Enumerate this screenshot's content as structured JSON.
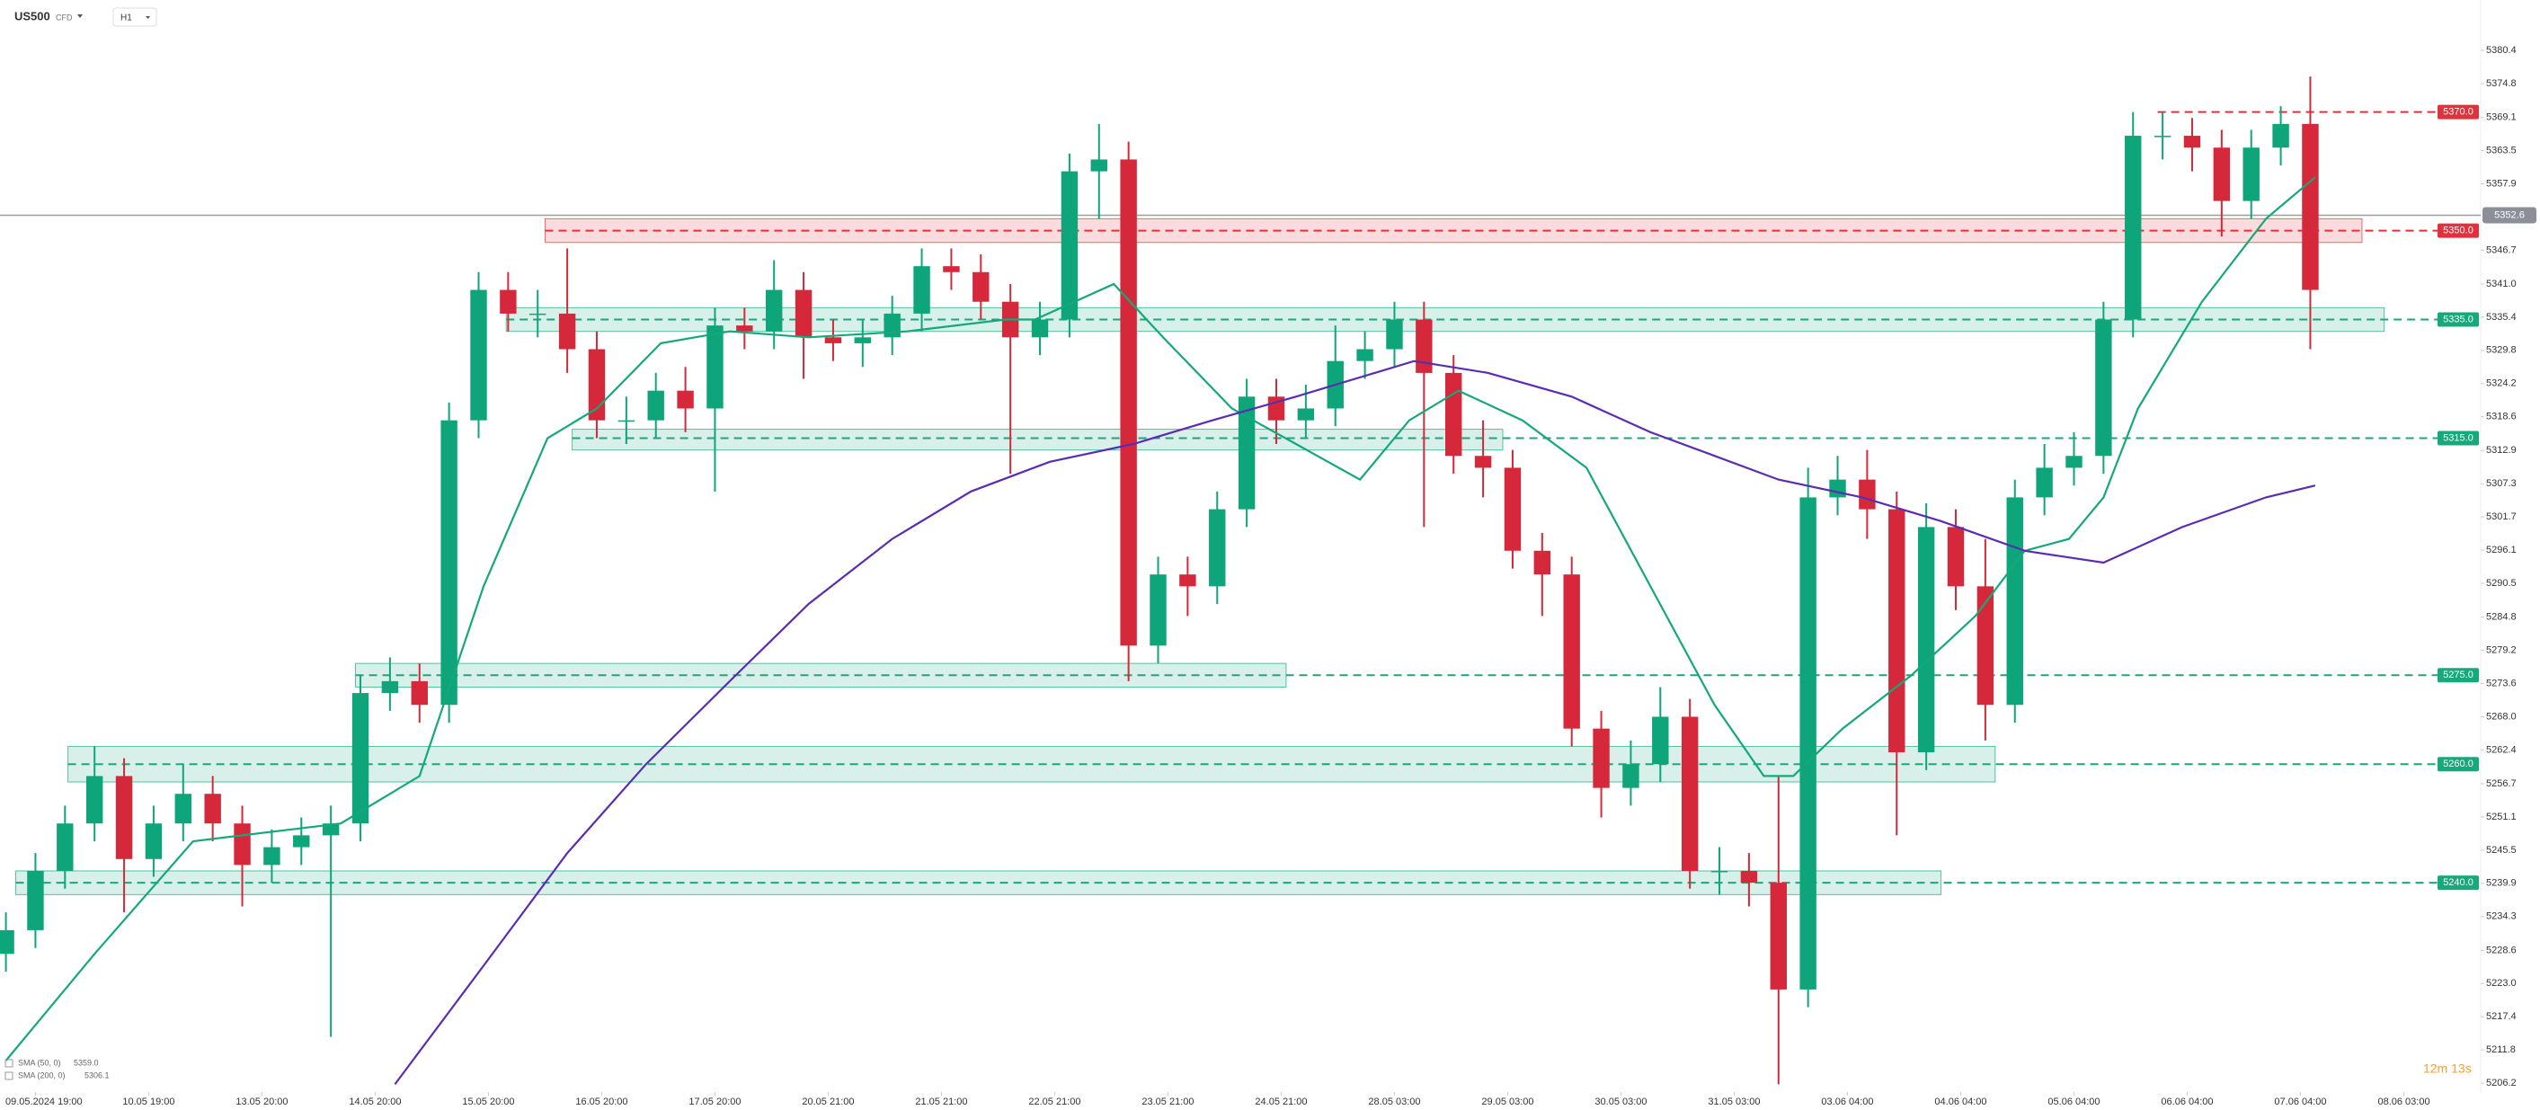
{
  "header": {
    "symbol": "US500",
    "market": "CFD",
    "timeframe": "H1"
  },
  "chart_data": {
    "type": "candlestick",
    "xlim": [
      -7.2,
      496.6
    ],
    "ylim": [
      5204.7,
      5388.9
    ],
    "yticks": [
      5380.4,
      5374.8,
      5369.1,
      5363.5,
      5357.9,
      5346.7,
      {
        "value": 5341.0,
        "label": "5341.0"
      },
      5335.4,
      5329.8,
      5324.2,
      5318.6,
      5312.9,
      5307.3,
      5301.7,
      5296.1,
      5290.5,
      5284.8,
      5279.2,
      5273.6,
      {
        "value": 5268.0,
        "label": "5268.0"
      },
      5262.4,
      5256.7,
      5251.1,
      5245.5,
      5239.9,
      5234.3,
      5228.6,
      {
        "value": 5223.0,
        "label": "5223.0"
      },
      5217.4,
      5211.8,
      5206.2
    ],
    "xticks": [
      {
        "value": 0,
        "label": "09.05.2024 19:00"
      },
      {
        "value": 23,
        "label": "10.05 19:00"
      },
      {
        "value": 46,
        "label": "13.05 20:00"
      },
      {
        "value": 69,
        "label": "14.05 20:00"
      },
      {
        "value": 92,
        "label": "15.05 20:00"
      },
      {
        "value": 115,
        "label": "16.05 20:00"
      },
      {
        "value": 138,
        "label": "17.05 20:00"
      },
      {
        "value": 161,
        "label": "20.05 21:00"
      },
      {
        "value": 184,
        "label": "21.05 21:00"
      },
      {
        "value": 207,
        "label": "22.05 21:00"
      },
      {
        "value": 230,
        "label": "23.05 21:00"
      },
      {
        "value": 253,
        "label": "24.05 21:00"
      },
      {
        "value": 276,
        "label": "28.05 03:00"
      },
      {
        "value": 299,
        "label": "29.05 03:00"
      },
      {
        "value": 322,
        "label": "30.05 03:00"
      },
      {
        "value": 345,
        "label": "31.05 03:00"
      },
      {
        "value": 368,
        "label": "03.06 04:00"
      },
      {
        "value": 391,
        "label": "04.06 04:00"
      },
      {
        "value": 414,
        "label": "05.06 04:00"
      },
      {
        "value": 437,
        "label": "06.06 04:00"
      },
      {
        "value": 460,
        "label": "07.06 04:00"
      },
      {
        "value": 481,
        "label": "08.06 03:00"
      }
    ],
    "up_color": "#0ea57a",
    "down_color": "#d6283b",
    "candles": {
      "x": [
        -6,
        0,
        6,
        12,
        18,
        24,
        30,
        36,
        42,
        48,
        54,
        60,
        66,
        72,
        78,
        84,
        90,
        96,
        102,
        108,
        114,
        120,
        126,
        132,
        138,
        144,
        150,
        156,
        162,
        168,
        174,
        180,
        186,
        192,
        198,
        204,
        210,
        216,
        222,
        228,
        234,
        240,
        246,
        252,
        258,
        264,
        270,
        276,
        282,
        288,
        294,
        300,
        306,
        312,
        318,
        324,
        330,
        336,
        342,
        348,
        354,
        360,
        366,
        372,
        378,
        384,
        390,
        396,
        402,
        408,
        414,
        420,
        426,
        432,
        438,
        444,
        450,
        456,
        462
      ],
      "open": [
        5228,
        5232,
        5242,
        5250,
        5258,
        5244,
        5250,
        5255,
        5250,
        5243,
        5246,
        5248,
        5250,
        5272,
        5274,
        5270,
        5318,
        5340,
        5336,
        5336,
        5330,
        5318,
        5318,
        5323,
        5320,
        5334,
        5333,
        5340,
        5332,
        5331,
        5332,
        5336,
        5344,
        5343,
        5338,
        5332,
        5335,
        5360,
        5362,
        5280,
        5292,
        5290,
        5303,
        5322,
        5318,
        5320,
        5328,
        5330,
        5335,
        5326,
        5312,
        5310,
        5296,
        5292,
        5266,
        5256,
        5260,
        5268,
        5242,
        5242,
        5240,
        5222,
        5305,
        5308,
        5303,
        5262,
        5300,
        5290,
        5270,
        5305,
        5310,
        5312,
        5335,
        5366,
        5366,
        5364,
        5355,
        5364,
        5368
      ],
      "high": [
        5235,
        5245,
        5253,
        5263,
        5261,
        5253,
        5260,
        5258,
        5253,
        5249,
        5251,
        5253,
        5275,
        5278,
        5277,
        5321,
        5343,
        5343,
        5340,
        5347,
        5333,
        5322,
        5326,
        5327,
        5337,
        5337,
        5345,
        5343,
        5335,
        5335,
        5339,
        5347,
        5347,
        5346,
        5341,
        5338,
        5363,
        5368,
        5365,
        5295,
        5295,
        5306,
        5325,
        5325,
        5324,
        5334,
        5333,
        5338,
        5338,
        5329,
        5318,
        5313,
        5299,
        5295,
        5269,
        5264,
        5273,
        5271,
        5246,
        5245,
        5258,
        5310,
        5312,
        5313,
        5306,
        5304,
        5303,
        5298,
        5308,
        5314,
        5316,
        5338,
        5370,
        5370,
        5369,
        5367,
        5367,
        5371,
        5376
      ],
      "low": [
        5225,
        5229,
        5239,
        5247,
        5235,
        5241,
        5247,
        5247,
        5236,
        5240,
        5243,
        5214,
        5247,
        5269,
        5267,
        5267,
        5315,
        5333,
        5332,
        5326,
        5315,
        5314,
        5315,
        5316,
        5306,
        5330,
        5330,
        5325,
        5328,
        5327,
        5329,
        5333,
        5340,
        5335,
        5309,
        5329,
        5332,
        5352,
        5274,
        5277,
        5285,
        5287,
        5300,
        5314,
        5315,
        5317,
        5325,
        5327,
        5300,
        5309,
        5305,
        5293,
        5285,
        5263,
        5251,
        5253,
        5257,
        5239,
        5238,
        5236,
        5206,
        5219,
        5302,
        5298,
        5248,
        5259,
        5286,
        5264,
        5267,
        5302,
        5307,
        5309,
        5332,
        5362,
        5360,
        5349,
        5352,
        5361,
        5330
      ],
      "close": [
        5232,
        5242,
        5250,
        5258,
        5244,
        5250,
        5255,
        5250,
        5243,
        5246,
        5248,
        5250,
        5272,
        5274,
        5270,
        5318,
        5340,
        5336,
        5336,
        5330,
        5318,
        5318,
        5323,
        5320,
        5334,
        5333,
        5340,
        5332,
        5331,
        5332,
        5336,
        5344,
        5343,
        5338,
        5332,
        5335,
        5360,
        5362,
        5280,
        5292,
        5290,
        5303,
        5322,
        5318,
        5320,
        5328,
        5330,
        5335,
        5326,
        5312,
        5310,
        5296,
        5292,
        5266,
        5256,
        5260,
        5268,
        5242,
        5242,
        5240,
        5222,
        5305,
        5308,
        5303,
        5262,
        5300,
        5290,
        5270,
        5305,
        5310,
        5312,
        5335,
        5366,
        5366,
        5364,
        5355,
        5364,
        5368,
        5340
      ]
    },
    "series": [
      {
        "name": "SMA (50, 0)",
        "color": "#14a87a",
        "legend_value": {
          "value": 5359.0,
          "label": "5359.0"
        },
        "x": [
          -6,
          12,
          32,
          52,
          62,
          78,
          91,
          104,
          114,
          127,
          141,
          157,
          177,
          197,
          203,
          219,
          229,
          243,
          256,
          269,
          279,
          289,
          302,
          315,
          328,
          341,
          351,
          357,
          367,
          381,
          394,
          404,
          413,
          420,
          427,
          440,
          453,
          463
        ],
        "values": [
          5210,
          5228,
          5247,
          5249,
          5250,
          5258,
          5290,
          5315,
          5320,
          5331,
          5333,
          5332,
          5333,
          5335,
          5335,
          5341,
          5332,
          5320,
          5314,
          5308,
          5318,
          5323,
          5318,
          5310,
          5290,
          5270,
          5258,
          5258,
          5266,
          5275,
          5285,
          5296,
          5298,
          5305,
          5320,
          5338,
          5352,
          5359
        ]
      },
      {
        "name": "SMA (200, 0)",
        "color": "#5a2db0",
        "legend_value": {
          "value": 5306.1,
          "label": "5306.1"
        },
        "x": [
          73,
          91,
          108,
          124,
          141,
          157,
          174,
          190,
          206,
          223,
          239,
          256,
          272,
          280,
          295,
          312,
          328,
          341,
          354,
          371,
          387,
          404,
          420,
          436,
          453,
          463
        ],
        "values": [
          5206,
          5226,
          5245,
          5260,
          5274,
          5287,
          5298,
          5306,
          5311,
          5314,
          5318,
          5322,
          5326,
          5328,
          5326,
          5322,
          5316,
          5312,
          5308,
          5305,
          5301,
          5296,
          5294,
          5300,
          5305,
          5307
        ]
      }
    ],
    "levels": [
      {
        "value": 5370,
        "label": "5370.0",
        "color": "#e0323c",
        "from": 431
      },
      {
        "value": 5350,
        "label": "5350.0",
        "color": "#e0323c",
        "from": 103.5,
        "to": 472.5,
        "box": [
          5348,
          5352
        ]
      },
      {
        "value": 5335,
        "label": "5335.0",
        "color": "#17a97a",
        "from": 95.6,
        "to": 477,
        "box": [
          5333,
          5337
        ]
      },
      {
        "value": 5315,
        "label": "5315.0",
        "color": "#17a97a",
        "from": 109,
        "to": 298,
        "box": [
          5313,
          5316.5
        ]
      },
      {
        "value": 5275,
        "label": "5275.0",
        "color": "#17a97a",
        "from": 65,
        "to": 254,
        "box": [
          5273,
          5277
        ]
      },
      {
        "value": 5260,
        "label": "5260.0",
        "color": "#17a97a",
        "from": 6.6,
        "to": 398,
        "box": [
          5257,
          5263
        ]
      },
      {
        "value": 5240,
        "label": "5240.0",
        "color": "#17a97a",
        "from": -4,
        "to": 387,
        "box": [
          5238,
          5242
        ]
      }
    ],
    "current_price": {
      "value": 5352.6,
      "label": "5352.6"
    },
    "countdown": "12m 13s"
  }
}
